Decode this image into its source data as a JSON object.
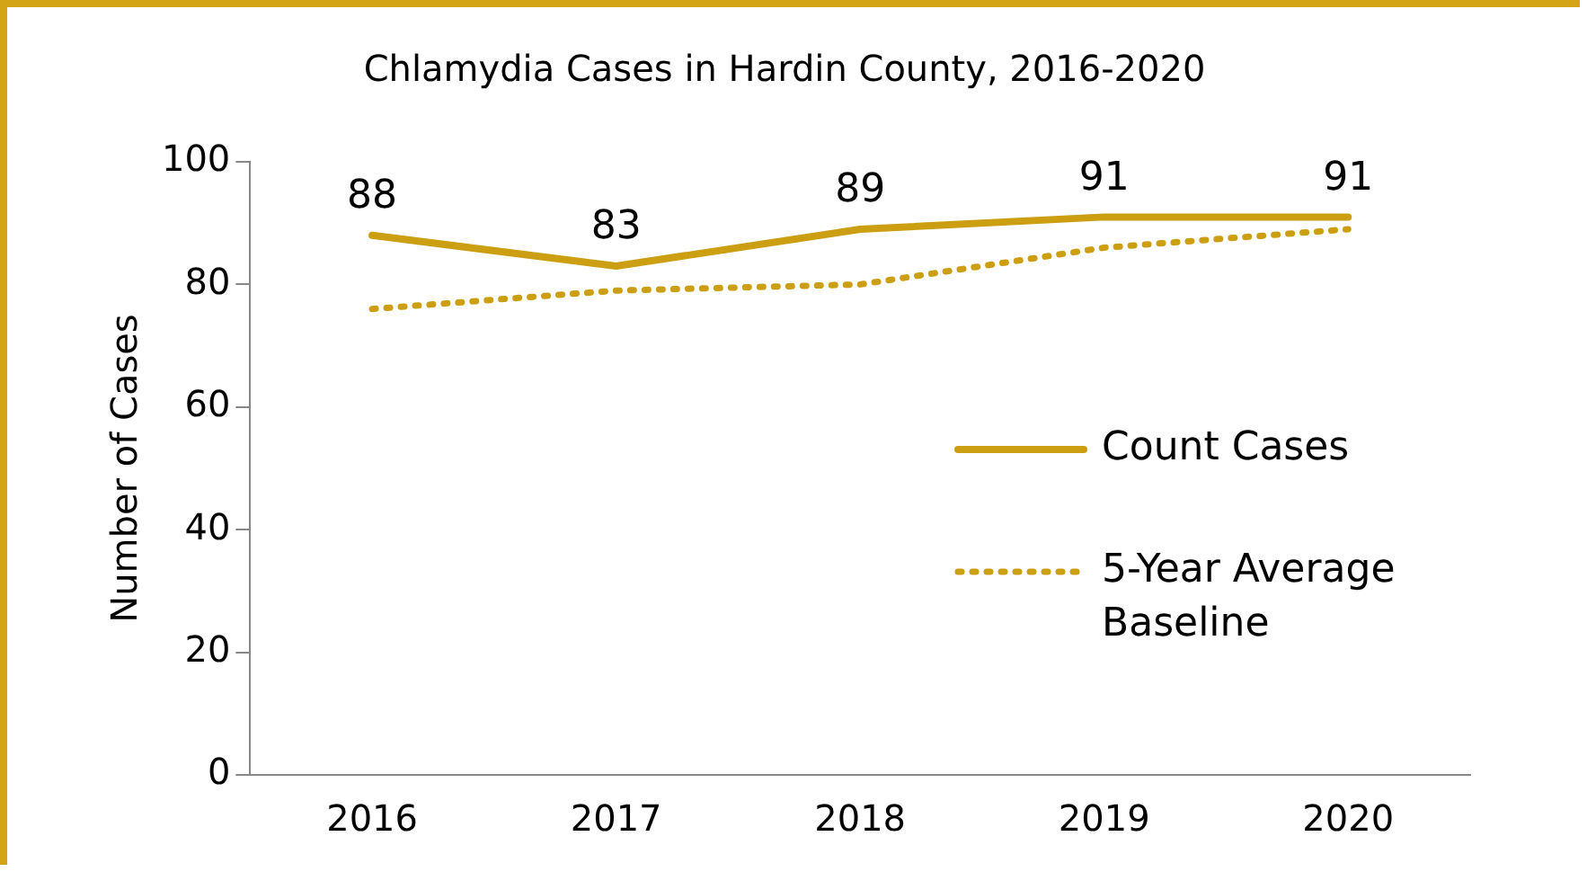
{
  "chart_data": {
    "type": "line",
    "title": "Chlamydia Cases in Hardin County, 2016-2020",
    "ylabel": "Number of Cases",
    "categories": [
      "2016",
      "2017",
      "2018",
      "2019",
      "2020"
    ],
    "series": [
      {
        "name": "Count Cases",
        "color": "#cc9e12",
        "values": [
          88,
          83,
          89,
          91,
          91
        ],
        "value_labels": [
          "88",
          "83",
          "89",
          "91",
          "91"
        ],
        "line_style": "solid"
      },
      {
        "name": "5-Year Average Baseline",
        "color": "#cc9e12",
        "values": [
          76,
          79,
          80,
          86,
          89
        ],
        "line_style": "dotted"
      }
    ],
    "ylim": [
      0,
      100
    ],
    "yticks": [
      0,
      20,
      40,
      60,
      80,
      100
    ],
    "grid": false,
    "legend": "right",
    "marker": "none"
  }
}
